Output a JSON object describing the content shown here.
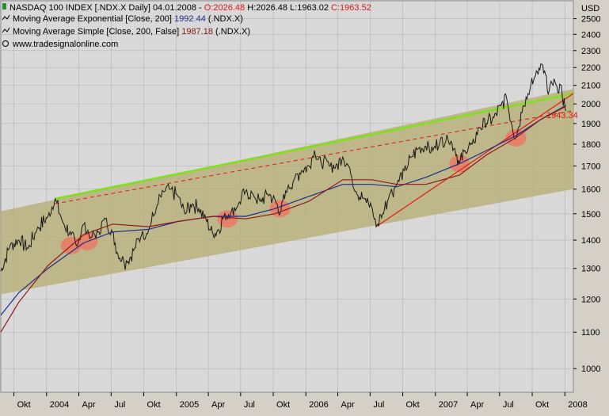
{
  "header": {
    "title": "NASDAQ 100 INDEX [.NDX.X  Daily] 04.01.2008 - ",
    "ohlc": {
      "o": "O:2026.48",
      "h": "H:2026.48",
      "l": "L:1963.02",
      "c": "C:1963.52"
    },
    "ema_label": "Moving Average Exponential [Close, 200]",
    "ema_value": "1992.44",
    "ema_symbol": "(.NDX.X)",
    "sma_label": "Moving Average Simple [Close, 200, False]",
    "sma_value": "1987.18",
    "sma_symbol": "(.NDX.X)",
    "source": "www.tradesignalonline.com"
  },
  "colors": {
    "price": "#1a1a1a",
    "ema": "#1f2d8c",
    "sma": "#8b1a1a",
    "channel_fill": "#b8b07a",
    "upper_trend": "#7fe01c",
    "support_lines": "#e01818",
    "highlight": "#f07060",
    "plot_bg": "#d9d9d9",
    "ohlc_red": "#e01818",
    "ema_value": "#1f2d8c",
    "sma_value": "#8b1a1a"
  },
  "chart_data": {
    "type": "line",
    "currency_label": "USD",
    "y_scale": "log",
    "ylim": [
      940,
      2620
    ],
    "yticks": [
      1000,
      1100,
      1200,
      1300,
      1400,
      1500,
      1600,
      1700,
      1800,
      1900,
      2000,
      2100,
      2200,
      2300,
      2400,
      2500
    ],
    "xlim": [
      "2003-08-25",
      "2008-01-25"
    ],
    "xticks": [
      {
        "label": "Okt",
        "date": "2003-10-01"
      },
      {
        "label": "2004",
        "date": "2004-01-01"
      },
      {
        "label": "Apr",
        "date": "2004-04-01"
      },
      {
        "label": "Jul",
        "date": "2004-07-01"
      },
      {
        "label": "Okt",
        "date": "2004-10-01"
      },
      {
        "label": "2005",
        "date": "2005-01-01"
      },
      {
        "label": "Apr",
        "date": "2005-04-01"
      },
      {
        "label": "Jul",
        "date": "2005-07-01"
      },
      {
        "label": "Okt",
        "date": "2005-10-01"
      },
      {
        "label": "2006",
        "date": "2006-01-01"
      },
      {
        "label": "Apr",
        "date": "2006-04-01"
      },
      {
        "label": "Jul",
        "date": "2006-07-01"
      },
      {
        "label": "Okt",
        "date": "2006-10-01"
      },
      {
        "label": "2007",
        "date": "2007-01-01"
      },
      {
        "label": "Apr",
        "date": "2007-04-01"
      },
      {
        "label": "Jul",
        "date": "2007-07-01"
      },
      {
        "label": "Okt",
        "date": "2007-10-01"
      },
      {
        "label": "2008",
        "date": "2008-01-01"
      }
    ],
    "series": [
      {
        "name": "NASDAQ 100 INDEX",
        "x": [
          "2003-08-25",
          "2003-09-20",
          "2003-10-15",
          "2003-11-10",
          "2003-12-05",
          "2004-01-05",
          "2004-01-25",
          "2004-02-15",
          "2004-03-10",
          "2004-03-25",
          "2004-04-15",
          "2004-05-05",
          "2004-05-25",
          "2004-06-15",
          "2004-07-05",
          "2004-07-20",
          "2004-08-05",
          "2004-08-15",
          "2004-09-05",
          "2004-09-25",
          "2004-10-15",
          "2004-11-05",
          "2004-11-25",
          "2004-12-15",
          "2005-01-05",
          "2005-01-25",
          "2005-02-15",
          "2005-03-05",
          "2005-03-25",
          "2005-04-15",
          "2005-04-25",
          "2005-05-15",
          "2005-06-05",
          "2005-06-25",
          "2005-07-15",
          "2005-08-05",
          "2005-08-25",
          "2005-09-15",
          "2005-10-05",
          "2005-10-20",
          "2005-11-10",
          "2005-12-01",
          "2005-12-20",
          "2006-01-10",
          "2006-01-25",
          "2006-02-15",
          "2006-03-05",
          "2006-03-25",
          "2006-04-15",
          "2006-05-05",
          "2006-05-25",
          "2006-06-15",
          "2006-07-05",
          "2006-07-18",
          "2006-08-05",
          "2006-08-25",
          "2006-09-15",
          "2006-10-05",
          "2006-10-25",
          "2006-11-15",
          "2006-12-05",
          "2006-12-25",
          "2007-01-15",
          "2007-02-05",
          "2007-02-25",
          "2007-03-10",
          "2007-03-25",
          "2007-04-15",
          "2007-05-05",
          "2007-05-25",
          "2007-06-15",
          "2007-07-05",
          "2007-07-20",
          "2007-08-05",
          "2007-08-16",
          "2007-09-05",
          "2007-09-25",
          "2007-10-10",
          "2007-10-25",
          "2007-11-05",
          "2007-11-15",
          "2007-11-26",
          "2007-12-10",
          "2007-12-20",
          "2008-01-04"
        ],
        "y": [
          1290,
          1380,
          1400,
          1370,
          1440,
          1490,
          1560,
          1470,
          1420,
          1380,
          1460,
          1410,
          1430,
          1480,
          1430,
          1350,
          1330,
          1320,
          1370,
          1420,
          1440,
          1520,
          1590,
          1600,
          1570,
          1500,
          1540,
          1520,
          1480,
          1420,
          1430,
          1490,
          1510,
          1540,
          1590,
          1580,
          1550,
          1580,
          1560,
          1500,
          1600,
          1650,
          1680,
          1700,
          1770,
          1700,
          1720,
          1690,
          1740,
          1690,
          1580,
          1560,
          1530,
          1450,
          1500,
          1580,
          1620,
          1680,
          1740,
          1780,
          1790,
          1770,
          1820,
          1830,
          1780,
          1710,
          1770,
          1800,
          1880,
          1900,
          1930,
          1990,
          2040,
          1890,
          1830,
          1990,
          2080,
          2150,
          2220,
          2180,
          2050,
          2110,
          2090,
          2100,
          1963
        ]
      },
      {
        "name": "Moving Average Exponential [Close, 200]",
        "x": [
          "2003-08-25",
          "2003-10-15",
          "2004-01-05",
          "2004-04-15",
          "2004-07-05",
          "2004-10-15",
          "2005-01-05",
          "2005-04-15",
          "2005-07-15",
          "2005-10-05",
          "2006-01-10",
          "2006-04-15",
          "2006-07-05",
          "2006-09-15",
          "2006-12-05",
          "2007-03-10",
          "2007-05-25",
          "2007-08-16",
          "2007-10-25",
          "2008-01-04"
        ],
        "y": [
          1150,
          1220,
          1300,
          1390,
          1430,
          1440,
          1470,
          1490,
          1490,
          1520,
          1570,
          1620,
          1620,
          1610,
          1650,
          1710,
          1770,
          1840,
          1920,
          1992.44
        ]
      },
      {
        "name": "Moving Average Simple [Close, 200, False]",
        "x": [
          "2003-08-25",
          "2003-10-15",
          "2004-01-05",
          "2004-04-15",
          "2004-07-05",
          "2004-10-15",
          "2005-01-05",
          "2005-04-15",
          "2005-07-15",
          "2005-10-05",
          "2006-01-10",
          "2006-04-15",
          "2006-07-05",
          "2006-09-15",
          "2006-12-05",
          "2007-03-10",
          "2007-05-25",
          "2007-08-16",
          "2007-10-25",
          "2008-01-04"
        ],
        "y": [
          1100,
          1190,
          1310,
          1420,
          1460,
          1450,
          1470,
          1490,
          1480,
          1500,
          1550,
          1640,
          1640,
          1620,
          1620,
          1660,
          1750,
          1830,
          1920,
          1987.18
        ]
      }
    ],
    "trendlines": [
      {
        "role": "upper-resistance",
        "x": [
          "2004-01-25",
          "2008-01-25"
        ],
        "y": [
          1560,
          2055
        ]
      },
      {
        "role": "mid-dashed",
        "x": [
          "2004-01-25",
          "2008-01-25"
        ],
        "y": [
          1540,
          1965
        ],
        "value_label": "1943.34"
      },
      {
        "role": "rising-support",
        "x": [
          "2006-07-18",
          "2008-01-25"
        ],
        "y": [
          1450,
          2055
        ]
      }
    ],
    "channel": {
      "upper": {
        "x": [
          "2003-08-25",
          "2008-01-25"
        ],
        "y": [
          1510,
          2080
        ]
      },
      "lower": {
        "x": [
          "2003-08-25",
          "2008-01-25"
        ],
        "y": [
          1215,
          1600
        ]
      }
    },
    "highlights": [
      {
        "x": "2004-03-10",
        "y": 1380
      },
      {
        "x": "2004-04-25",
        "y": 1395
      },
      {
        "x": "2005-05-25",
        "y": 1480
      },
      {
        "x": "2005-10-20",
        "y": 1520
      },
      {
        "x": "2007-03-10",
        "y": 1710
      },
      {
        "x": "2007-08-16",
        "y": 1830
      }
    ]
  }
}
